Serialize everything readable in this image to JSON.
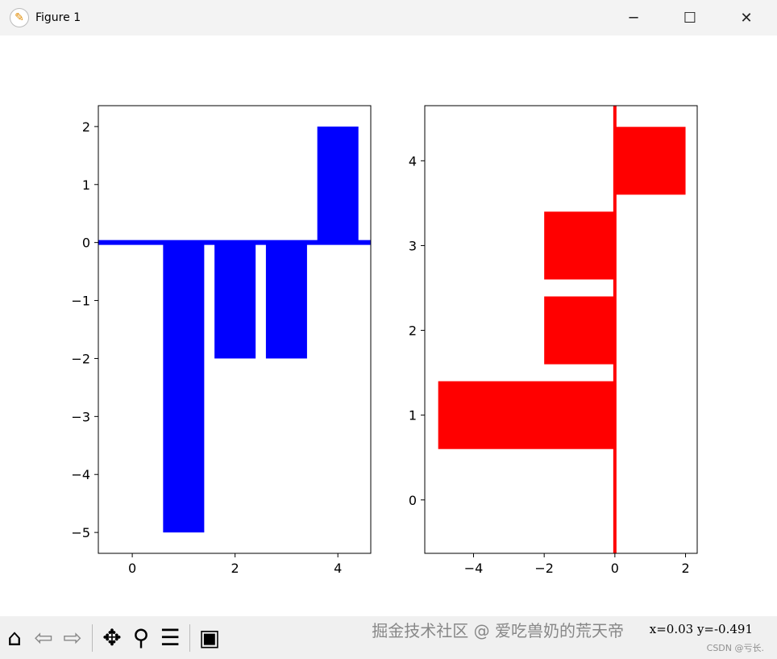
{
  "window": {
    "title": "Figure 1",
    "icon": "matplotlib-icon",
    "minimize": "─",
    "maximize": "☐",
    "close": "✕"
  },
  "chart_data": [
    {
      "type": "bar",
      "x": [
        0,
        1,
        2,
        3,
        4
      ],
      "values": [
        0,
        -5,
        -2,
        -2,
        2
      ],
      "bar_width": 0.8,
      "color": "#0000ff",
      "xlim": [
        -0.66,
        4.64
      ],
      "ylim": [
        -5.36,
        2.36
      ],
      "xticks": [
        0,
        2,
        4
      ],
      "xtick_labels": [
        "0",
        "2",
        "4"
      ],
      "yticks": [
        -5,
        -4,
        -3,
        -2,
        -1,
        0,
        1,
        2
      ],
      "ytick_labels": [
        "−5",
        "−4",
        "−3",
        "−2",
        "−1",
        "0",
        "1",
        "2"
      ],
      "hline": {
        "y": 0,
        "color": "#0000ff"
      },
      "grid": false
    },
    {
      "type": "barh",
      "y": [
        0,
        1,
        2,
        3,
        4
      ],
      "values": [
        0,
        -5,
        -2,
        -2,
        2
      ],
      "bar_height": 0.8,
      "color": "#ff0000",
      "xlim": [
        -5.38,
        2.33
      ],
      "ylim": [
        -0.63,
        4.65
      ],
      "xticks": [
        -4,
        -2,
        0,
        2
      ],
      "xtick_labels": [
        "−4",
        "−2",
        "0",
        "2"
      ],
      "yticks": [
        0,
        1,
        2,
        3,
        4
      ],
      "ytick_labels": [
        "0",
        "1",
        "2",
        "3",
        "4"
      ],
      "vline": {
        "x": 0,
        "color": "#ff0000"
      },
      "grid": false
    }
  ],
  "toolbar": {
    "items": [
      "home-icon",
      "back-icon",
      "forward-icon",
      "pan-icon",
      "zoom-icon",
      "configure-icon",
      "save-icon"
    ],
    "coords": "x=0.03 y=-0.491"
  },
  "watermark": {
    "main": "掘金技术社区 @ 爱吃兽奶的荒天帝",
    "sub": "CSDN @亏长."
  }
}
